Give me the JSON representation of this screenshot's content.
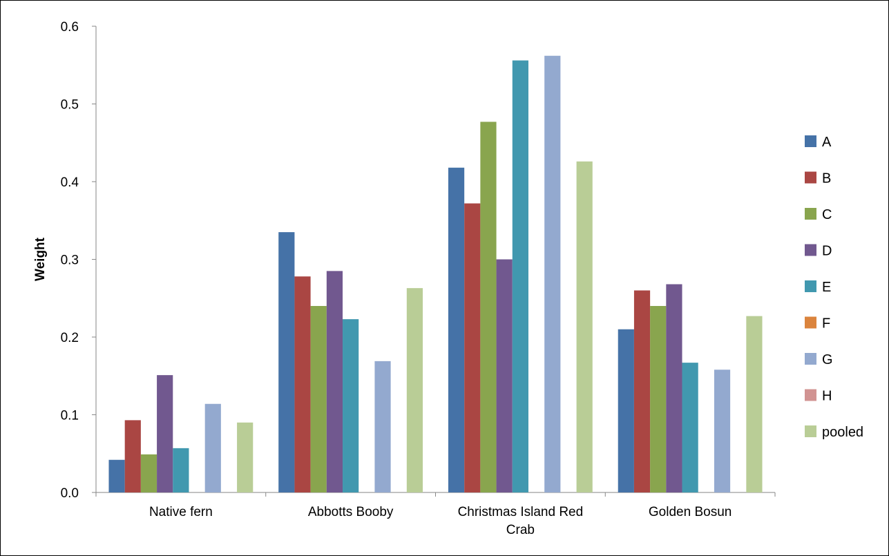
{
  "chart_data": {
    "type": "bar",
    "ylabel": "Weight",
    "xlabel": "",
    "ylim": [
      0,
      0.6
    ],
    "y_ticks": [
      "0.0",
      "0.1",
      "0.2",
      "0.3",
      "0.4",
      "0.5",
      "0.6"
    ],
    "categories": [
      [
        "Native fern"
      ],
      [
        "Abbotts Booby"
      ],
      [
        "Christmas Island Red",
        "Crab"
      ],
      [
        "Golden Bosun"
      ]
    ],
    "legend_position": "right",
    "grid": false,
    "series": [
      {
        "name": "A",
        "color": "#4572A7",
        "values": [
          0.042,
          0.335,
          0.418,
          0.21
        ]
      },
      {
        "name": "B",
        "color": "#AA4643",
        "values": [
          0.093,
          0.278,
          0.372,
          0.26
        ]
      },
      {
        "name": "C",
        "color": "#89A54E",
        "values": [
          0.049,
          0.24,
          0.477,
          0.24
        ]
      },
      {
        "name": "D",
        "color": "#71588F",
        "values": [
          0.151,
          0.285,
          0.3,
          0.268
        ]
      },
      {
        "name": "E",
        "color": "#4198AF",
        "values": [
          0.057,
          0.223,
          0.556,
          0.167
        ]
      },
      {
        "name": "F",
        "color": "#DB843D",
        "values": [
          0,
          0,
          0,
          0
        ]
      },
      {
        "name": "G",
        "color": "#93A9CF",
        "values": [
          0.114,
          0.169,
          0.562,
          0.158
        ]
      },
      {
        "name": "H",
        "color": "#D19392",
        "values": [
          0,
          0,
          0,
          0
        ]
      },
      {
        "name": "pooled",
        "color": "#B9CD96",
        "values": [
          0.09,
          0.263,
          0.426,
          0.227
        ]
      }
    ]
  }
}
